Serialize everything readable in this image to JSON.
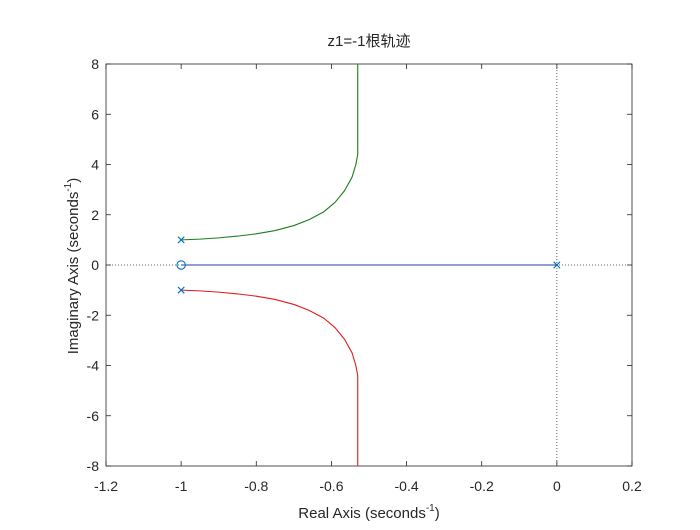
{
  "chart_data": {
    "type": "line",
    "title": "z1=-1根轨迹",
    "xlabel": "Real Axis (seconds",
    "xlabel_sup": "-1",
    "xlabel_end": ")",
    "ylabel": "Imaginary Axis (seconds",
    "ylabel_sup": "-1",
    "ylabel_end": ")",
    "xlim": [
      -1.2,
      0.2
    ],
    "ylim": [
      -8,
      8
    ],
    "xticks": [
      -1.2,
      -1,
      -0.8,
      -0.6,
      -0.4,
      -0.2,
      0,
      0.2
    ],
    "xtick_labels": [
      "-1.2",
      "-1",
      "-0.8",
      "-0.6",
      "-0.4",
      "-0.2",
      "0",
      "0.2"
    ],
    "yticks": [
      -8,
      -6,
      -4,
      -2,
      0,
      2,
      4,
      6,
      8
    ],
    "ytick_labels": [
      "-8",
      "-6",
      "-4",
      "-2",
      "0",
      "2",
      "4",
      "6",
      "8"
    ],
    "grid": false,
    "reference_lines": {
      "x": 0,
      "y": 0,
      "style": "dotted",
      "color": "#333333"
    },
    "series": [
      {
        "color": "#1f3f9f",
        "points": [
          [
            0,
            0
          ],
          [
            -0.25,
            0
          ],
          [
            -0.5,
            0
          ],
          [
            -0.75,
            0
          ],
          [
            -1,
            0
          ]
        ]
      },
      {
        "color": "#1a7f1a",
        "points": [
          [
            -1,
            1
          ],
          [
            -0.95,
            1.03
          ],
          [
            -0.9,
            1.08
          ],
          [
            -0.85,
            1.15
          ],
          [
            -0.8,
            1.24
          ],
          [
            -0.75,
            1.37
          ],
          [
            -0.7,
            1.57
          ],
          [
            -0.66,
            1.8
          ],
          [
            -0.62,
            2.12
          ],
          [
            -0.59,
            2.5
          ],
          [
            -0.565,
            2.96
          ],
          [
            -0.545,
            3.5
          ],
          [
            -0.535,
            4.0
          ],
          [
            -0.53,
            4.4
          ],
          [
            -0.53,
            8
          ]
        ]
      },
      {
        "color": "#e31a1c",
        "points": [
          [
            -1,
            -1
          ],
          [
            -0.95,
            -1.03
          ],
          [
            -0.9,
            -1.08
          ],
          [
            -0.85,
            -1.15
          ],
          [
            -0.8,
            -1.24
          ],
          [
            -0.75,
            -1.37
          ],
          [
            -0.7,
            -1.57
          ],
          [
            -0.66,
            -1.8
          ],
          [
            -0.62,
            -2.12
          ],
          [
            -0.59,
            -2.5
          ],
          [
            -0.565,
            -2.96
          ],
          [
            -0.545,
            -3.5
          ],
          [
            -0.535,
            -4.0
          ],
          [
            -0.53,
            -4.4
          ],
          [
            -0.53,
            -8
          ]
        ]
      }
    ],
    "poles": [
      [
        -1,
        1
      ],
      [
        -1,
        -1
      ],
      [
        0,
        0
      ]
    ],
    "zeros": [
      [
        -1,
        0
      ]
    ],
    "marker_color": "#0072bd"
  }
}
